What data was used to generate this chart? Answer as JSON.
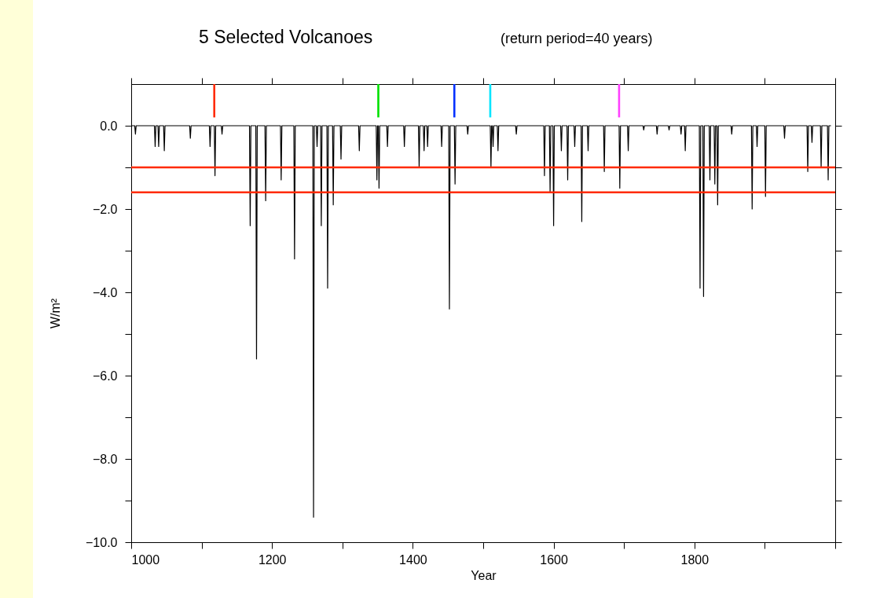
{
  "chart_data": {
    "type": "line",
    "title": "5 Selected Volcanoes",
    "subtitle": "(return period=40 years)",
    "xlabel": "Year",
    "ylabel": "W/m²",
    "xlim": [
      1000,
      2000
    ],
    "ylim": [
      -10,
      1
    ],
    "xticks": [
      1000,
      {
        "value": 1100,
        "label": null
      },
      1200,
      {
        "value": 1300,
        "label": null
      },
      1400,
      {
        "value": 1500,
        "label": null
      },
      1600,
      {
        "value": 1700,
        "label": null
      },
      1800,
      {
        "value": 1900,
        "label": null
      },
      {
        "value": 2000,
        "label": null
      }
    ],
    "yticks": [
      {
        "value": 0,
        "label": "0.0"
      },
      {
        "value": -1,
        "label": null
      },
      {
        "value": -2,
        "label": "−2.0"
      },
      {
        "value": -3,
        "label": null
      },
      {
        "value": -4,
        "label": "−4.0"
      },
      {
        "value": -5,
        "label": null
      },
      {
        "value": -6,
        "label": "−6.0"
      },
      {
        "value": -7,
        "label": null
      },
      {
        "value": -8,
        "label": "−8.0"
      },
      {
        "value": -9,
        "label": null
      },
      {
        "value": -10,
        "label": "−10.0"
      }
    ],
    "grid": false,
    "ref_lines": [
      {
        "axis": "y",
        "value": -1.0,
        "color": "#ff2a00"
      },
      {
        "axis": "y",
        "value": -1.6,
        "color": "#ff2a00"
      }
    ],
    "series": [
      {
        "color": "#000000",
        "x": [
          1000,
          1005,
          1006,
          1007,
          1033,
          1034,
          1035,
          1038,
          1039,
          1040,
          1046,
          1047,
          1048,
          1083,
          1084,
          1085,
          1111,
          1112,
          1113,
          1118,
          1119,
          1120,
          1128,
          1129,
          1130,
          1168,
          1169,
          1170,
          1177,
          1178,
          1179,
          1190,
          1191,
          1192,
          1212,
          1213,
          1214,
          1231,
          1232,
          1233,
          1258,
          1259,
          1260,
          1263,
          1264,
          1265,
          1269,
          1270,
          1271,
          1278,
          1279,
          1280,
          1286,
          1287,
          1288,
          1297,
          1298,
          1299,
          1323,
          1324,
          1325,
          1348,
          1349,
          1350,
          1351,
          1352,
          1353,
          1363,
          1364,
          1365,
          1387,
          1388,
          1389,
          1408,
          1409,
          1410,
          1415,
          1416,
          1417,
          1420,
          1421,
          1422,
          1440,
          1441,
          1442,
          1451,
          1452,
          1453,
          1459,
          1460,
          1461,
          1477,
          1478,
          1479,
          1510,
          1511,
          1512,
          1513,
          1514,
          1515,
          1520,
          1521,
          1522,
          1546,
          1547,
          1548,
          1586,
          1587,
          1588,
          1594,
          1595,
          1596,
          1599,
          1600,
          1601,
          1610,
          1611,
          1612,
          1619,
          1620,
          1621,
          1629,
          1630,
          1631,
          1639,
          1640,
          1641,
          1648,
          1649,
          1650,
          1671,
          1672,
          1673,
          1693,
          1694,
          1695,
          1705,
          1706,
          1707,
          1727,
          1728,
          1729,
          1746,
          1747,
          1748,
          1763,
          1764,
          1765,
          1780,
          1781,
          1782,
          1786,
          1787,
          1788,
          1807,
          1808,
          1809,
          1812,
          1813,
          1814,
          1821,
          1822,
          1823,
          1828,
          1829,
          1830,
          1832,
          1833,
          1834,
          1852,
          1853,
          1854,
          1881,
          1882,
          1883,
          1888,
          1889,
          1890,
          1900,
          1901,
          1902,
          1927,
          1928,
          1929,
          1960,
          1961,
          1962,
          1966,
          1967,
          1968,
          1979,
          1980,
          1981,
          1989,
          1990,
          1991,
          1994
        ],
        "values": [
          0,
          0,
          -0.2,
          0,
          0,
          -0.5,
          0,
          0,
          -0.5,
          0,
          0,
          -0.6,
          0,
          0,
          -0.3,
          0,
          0,
          -0.5,
          0,
          0,
          -1.2,
          0,
          0,
          -0.2,
          0,
          0,
          -2.4,
          0,
          0,
          -5.6,
          0,
          0,
          -1.8,
          0,
          0,
          -1.3,
          0,
          0,
          -3.2,
          0,
          0,
          -9.4,
          0,
          0,
          -0.5,
          0,
          0,
          -2.4,
          0,
          0,
          -3.9,
          0,
          0,
          -1.9,
          0,
          0,
          -0.8,
          0,
          0,
          -0.6,
          0,
          0,
          -1.3,
          0,
          0,
          -1.5,
          0,
          0,
          -0.5,
          0,
          0,
          -0.5,
          0,
          0,
          -1.0,
          0,
          0,
          -0.6,
          0,
          0,
          -0.5,
          0,
          0,
          -0.5,
          0,
          0,
          -4.4,
          0,
          0,
          -1.4,
          0,
          0,
          -0.2,
          0,
          0,
          -1.0,
          0,
          0,
          -0.5,
          0,
          0,
          -0.6,
          0,
          0,
          -0.2,
          0,
          0,
          -1.2,
          0,
          0,
          -1.6,
          0,
          0,
          -2.4,
          0,
          0,
          -0.6,
          0,
          0,
          -1.3,
          0,
          0,
          -0.5,
          0,
          0,
          -2.3,
          0,
          0,
          -0.6,
          0,
          0,
          -1.1,
          0,
          0,
          -1.5,
          0,
          0,
          -0.6,
          0,
          0,
          -0.1,
          0,
          0,
          -0.2,
          0,
          0,
          -0.1,
          0,
          0,
          -0.2,
          0,
          0,
          -0.6,
          0,
          0,
          -3.9,
          0,
          0,
          -4.1,
          0,
          0,
          -1.3,
          0,
          0,
          -1.4,
          0,
          0,
          -1.9,
          0,
          0,
          -0.2,
          0,
          0,
          -2.0,
          0,
          0,
          -0.5,
          0,
          0,
          -1.7,
          0,
          0,
          -0.3,
          0,
          0,
          -1.1,
          0,
          0,
          -0.4,
          0,
          0,
          -1.0,
          0,
          0,
          -1.3,
          0,
          0
        ]
      },
      {
        "type": "bar",
        "x": [
          1118,
          1351,
          1459,
          1510,
          1693
        ],
        "base": [
          0.2,
          0.2,
          0.2,
          0.2,
          0.2
        ],
        "values": [
          0.8,
          0.8,
          0.8,
          0.8,
          0.8
        ],
        "colors": [
          "#ff2a00",
          "#00e000",
          "#0030ff",
          "#00e5ff",
          "#ff40ff"
        ]
      }
    ]
  }
}
